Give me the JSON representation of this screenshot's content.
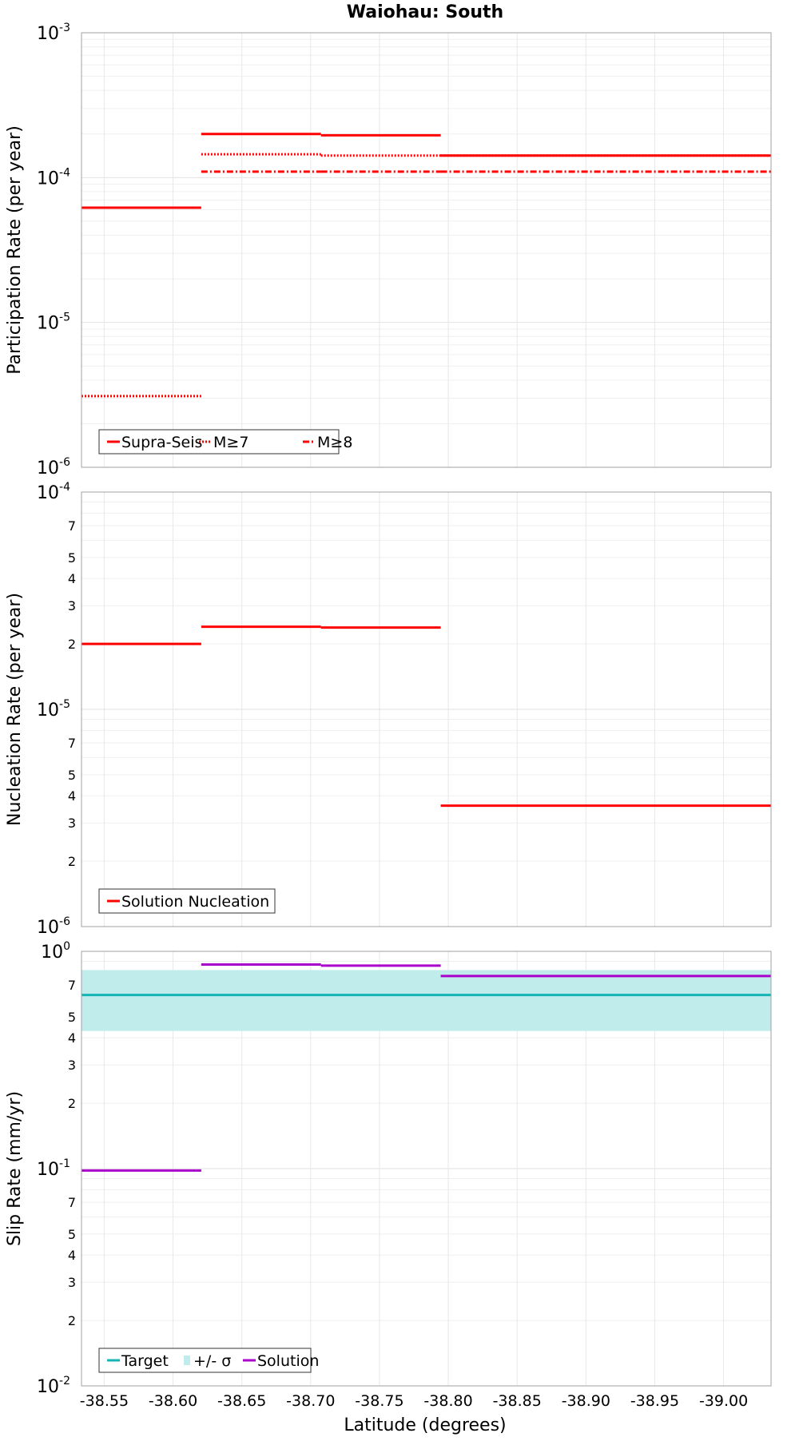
{
  "title": "Waiohau: South",
  "xlabel": "Latitude (degrees)",
  "x_tick_labels": [
    "-38.55",
    "-38.60",
    "-38.65",
    "-38.70",
    "-38.75",
    "-38.80",
    "-38.85",
    "-38.90",
    "-38.95",
    "-39.00"
  ],
  "chart_data": [
    {
      "type": "line",
      "title": "Waiohau: South",
      "xlabel": "",
      "ylabel": "Participation Rate (per year)",
      "x_axis": "reversed",
      "xlim": [
        -38.5335,
        -39.0345
      ],
      "ylim": [
        1e-06,
        0.001
      ],
      "yscale": "log",
      "y_tick_labels": [
        {
          "base": "10",
          "exp": "-3"
        },
        {
          "base": "10",
          "exp": "-4"
        },
        {
          "base": "10",
          "exp": "-5"
        },
        {
          "base": "10",
          "exp": "-6"
        }
      ],
      "legend": {
        "position": "bottom-left",
        "entries": [
          "Supra-Seis",
          "M≥7",
          "M≥8"
        ]
      },
      "series": [
        {
          "name": "Supra-Seis",
          "color": "#ff0000",
          "dash": "solid",
          "segments": [
            [
              -38.5335,
              -38.6205,
              6.2e-05
            ],
            [
              -38.6205,
              -38.7075,
              0.0002
            ],
            [
              -38.7075,
              -38.7945,
              0.000196
            ],
            [
              -38.7945,
              -39.0345,
              0.000142
            ]
          ]
        },
        {
          "name": "M≥7",
          "color": "#ff0000",
          "dash": "dotted",
          "segments": [
            [
              -38.5335,
              -38.6205,
              3.1e-06
            ],
            [
              -38.6205,
              -38.7075,
              0.000145
            ],
            [
              -38.7075,
              -38.7945,
              0.000142
            ],
            [
              -38.7945,
              -39.0345,
              0.000142
            ]
          ]
        },
        {
          "name": "M≥8",
          "color": "#ff0000",
          "dash": "dashdot",
          "segments": [
            [
              -38.6205,
              -38.7075,
              0.00011
            ],
            [
              -38.7075,
              -38.7945,
              0.00011
            ],
            [
              -38.7945,
              -39.0345,
              0.00011
            ]
          ]
        }
      ]
    },
    {
      "type": "line",
      "title": "",
      "xlabel": "",
      "ylabel": "Nucleation Rate (per year)",
      "x_axis": "reversed",
      "xlim": [
        -38.5335,
        -39.0345
      ],
      "ylim": [
        1e-06,
        0.0001
      ],
      "yscale": "log",
      "y_tick_labels": [
        {
          "base": "10",
          "exp": "-4"
        },
        {
          "base": "7",
          "exp": ""
        },
        {
          "base": "5",
          "exp": ""
        },
        {
          "base": "4",
          "exp": ""
        },
        {
          "base": "3",
          "exp": ""
        },
        {
          "base": "2",
          "exp": ""
        },
        {
          "base": "10",
          "exp": "-5"
        },
        {
          "base": "7",
          "exp": ""
        },
        {
          "base": "5",
          "exp": ""
        },
        {
          "base": "4",
          "exp": ""
        },
        {
          "base": "3",
          "exp": ""
        },
        {
          "base": "2",
          "exp": ""
        },
        {
          "base": "10",
          "exp": "-6"
        }
      ],
      "legend": {
        "position": "bottom-left",
        "entries": [
          "Solution Nucleation"
        ]
      },
      "series": [
        {
          "name": "Solution Nucleation",
          "color": "#ff0000",
          "dash": "solid",
          "segments": [
            [
              -38.5335,
              -38.6205,
              2e-05
            ],
            [
              -38.6205,
              -38.7075,
              2.4e-05
            ],
            [
              -38.7075,
              -38.7945,
              2.38e-05
            ],
            [
              -38.7945,
              -39.0345,
              3.6e-06
            ]
          ]
        }
      ]
    },
    {
      "type": "line",
      "title": "",
      "xlabel": "Latitude (degrees)",
      "ylabel": "Slip Rate (mm/yr)",
      "x_axis": "reversed",
      "xlim": [
        -38.5335,
        -39.0345
      ],
      "ylim": [
        0.01,
        1.0
      ],
      "yscale": "log",
      "y_tick_labels": [
        {
          "base": "10",
          "exp": "0"
        },
        {
          "base": "7",
          "exp": ""
        },
        {
          "base": "5",
          "exp": ""
        },
        {
          "base": "4",
          "exp": ""
        },
        {
          "base": "3",
          "exp": ""
        },
        {
          "base": "2",
          "exp": ""
        },
        {
          "base": "10",
          "exp": "-1"
        },
        {
          "base": "7",
          "exp": ""
        },
        {
          "base": "5",
          "exp": ""
        },
        {
          "base": "4",
          "exp": ""
        },
        {
          "base": "3",
          "exp": ""
        },
        {
          "base": "2",
          "exp": ""
        },
        {
          "base": "10",
          "exp": "-2"
        }
      ],
      "legend": {
        "position": "bottom-left",
        "entries": [
          "Target",
          "+/- σ",
          "Solution"
        ]
      },
      "band": {
        "name": "+/- σ",
        "color": "#c0ecec",
        "low": 0.43,
        "high": 0.82
      },
      "series": [
        {
          "name": "Target",
          "color": "#14b4b4",
          "dash": "solid",
          "segments": [
            [
              -38.5335,
              -39.0345,
              0.63
            ]
          ]
        },
        {
          "name": "Solution",
          "color": "#aa00cc",
          "dash": "solid",
          "segments": [
            [
              -38.5335,
              -38.6205,
              0.098
            ],
            [
              -38.6205,
              -38.7075,
              0.87
            ],
            [
              -38.7075,
              -38.7945,
              0.86
            ],
            [
              -38.7945,
              -39.0345,
              0.77
            ]
          ]
        }
      ]
    }
  ]
}
